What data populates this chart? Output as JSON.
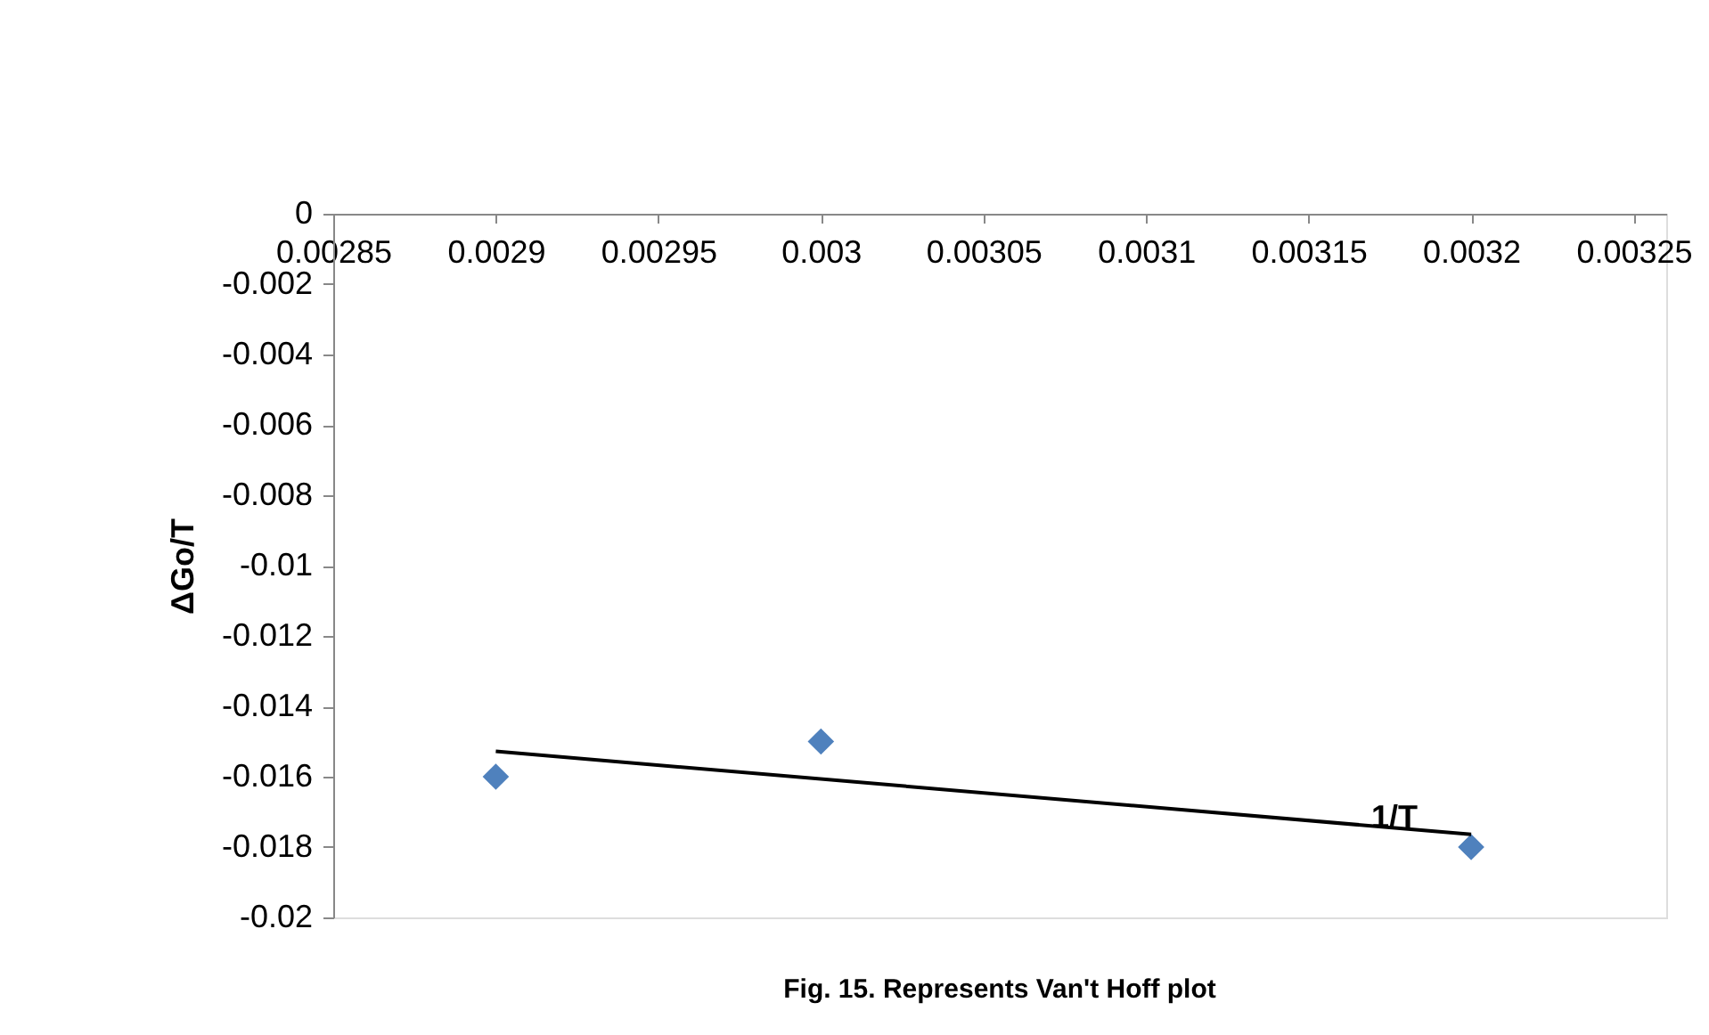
{
  "chart_data": {
    "type": "scatter",
    "title": "Fig. 15. Represents  Van't Hoff plot",
    "xlabel": "1/T",
    "ylabel": "ΔGo/T",
    "x": [
      0.0029,
      0.003,
      0.0032
    ],
    "series": [
      {
        "color": "#4f81bd",
        "marker": "diamond",
        "values": [
          -0.016,
          -0.015,
          -0.018
        ]
      },
      {
        "type": "line",
        "color": "#000000",
        "x": [
          0.0029,
          0.0032
        ],
        "values": [
          -0.01528,
          -0.01764
        ],
        "line_style": "solid"
      }
    ],
    "xlim": [
      0.00285,
      0.00326
    ],
    "xticks": [
      0.00285,
      0.0029,
      0.00295,
      0.003,
      0.00305,
      0.0031,
      0.00315,
      0.0032,
      0.00325
    ],
    "ylim": [
      -0.02,
      0
    ],
    "yticks": [
      -0.02,
      -0.018,
      -0.016,
      -0.014,
      -0.012,
      -0.01,
      -0.008,
      -0.006,
      -0.004,
      -0.002,
      0
    ],
    "grid": false
  }
}
